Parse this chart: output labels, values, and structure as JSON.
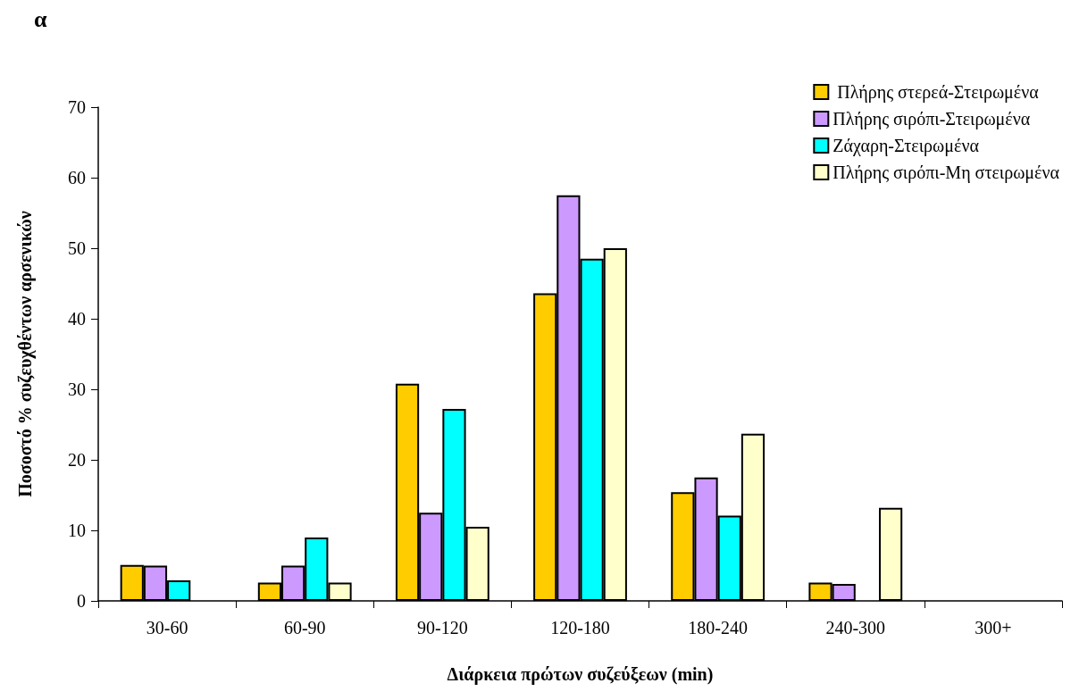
{
  "chart_data": {
    "type": "bar",
    "xlabel": "Διάρκεια πρώτων συζεύξεων (min)",
    "ylabel": "Ποσοστό % συζευχθέντων αρσενικών",
    "annotations": [
      "α"
    ],
    "categories": [
      "30-60",
      "60-90",
      "90-120",
      "120-180",
      "180-240",
      "240-300",
      "300+"
    ],
    "series": [
      {
        "name": " Πλήρης στερεά-Στειρωμένα",
        "color": "#ffcc00",
        "values": [
          5.1,
          2.6,
          30.8,
          43.6,
          15.4,
          2.6,
          null
        ]
      },
      {
        "name": "Πλήρης σιρόπι-Στειρωμένα",
        "color": "#cc99ff",
        "values": [
          5.0,
          5.0,
          12.5,
          57.5,
          17.5,
          2.4,
          null
        ]
      },
      {
        "name": "Ζάχαρη-Στειρωμένα",
        "color": "#00ffff",
        "values": [
          2.9,
          9.0,
          27.2,
          48.5,
          12.1,
          null,
          null
        ]
      },
      {
        "name": "Πλήρης σιρόπι-Μη στειρωμένα",
        "color": "#ffffcc",
        "values": [
          null,
          2.6,
          10.5,
          50.0,
          23.7,
          13.2,
          null
        ]
      }
    ],
    "ylim": [
      0,
      70
    ],
    "yticks": [
      0,
      10,
      20,
      30,
      40,
      50,
      60,
      70
    ],
    "grid": false,
    "legend": "top right"
  }
}
